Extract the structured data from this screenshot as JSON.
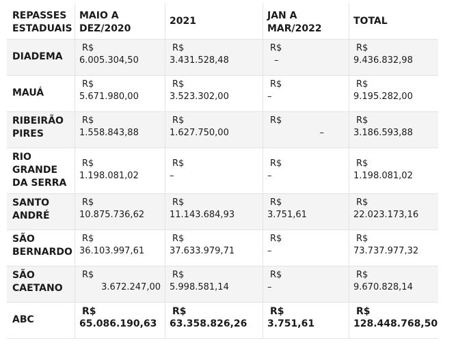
{
  "headers": [
    "REPASSES ESTADUAIS",
    "MAIO A DEZ/2020",
    "2021",
    "JAN A MAR/2022",
    "TOTAL"
  ],
  "currency": "R$",
  "rows": [
    {
      "city": "DIADEMA",
      "v": [
        "6.005.304,50",
        "3.431.528,48",
        "–",
        "9.436.832,98"
      ]
    },
    {
      "city": "MAUÁ",
      "v": [
        "5.671.980,00",
        "3.523.302,00",
        "–",
        "9.195.282,00"
      ]
    },
    {
      "city": "RIBEIRÃO PIRES",
      "v": [
        "1.558.843,88",
        "1.627.750,00",
        "–",
        "3.186.593,88"
      ]
    },
    {
      "city": "RIO GRANDE DA SERRA",
      "v": [
        "1.198.081,02",
        "–",
        "–",
        "1.198.081,02"
      ]
    },
    {
      "city": "SANTO ANDRÉ",
      "v": [
        "10.875.736,62",
        "11.143.684,93",
        "3.751,61",
        "22.023.173,16"
      ]
    },
    {
      "city": "SÃO BERNARDO",
      "v": [
        "36.103.997,61",
        "37.633.979,71",
        "–",
        "73.737.977,32"
      ]
    },
    {
      "city": "SÃO CAETANO",
      "v": [
        "3.672.247,00",
        "5.998.581,14",
        "–",
        "9.670.828,14"
      ]
    },
    {
      "city": "ABC",
      "v": [
        "65.086.190,63",
        "63.358.826,26",
        "3.751,61",
        "128.448.768,50"
      ]
    }
  ]
}
